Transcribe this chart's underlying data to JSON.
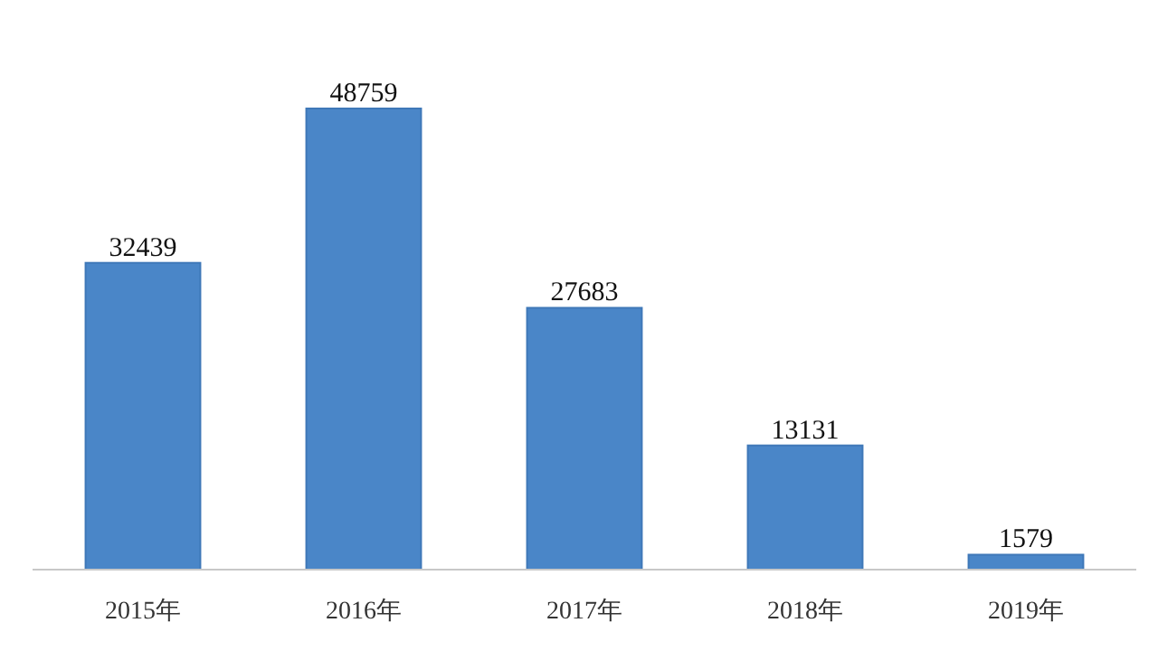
{
  "chart_data": {
    "type": "bar",
    "categories": [
      "2015年",
      "2016年",
      "2017年",
      "2018年",
      "2019年"
    ],
    "values": [
      32439,
      48759,
      27683,
      13131,
      1579
    ],
    "color": "#4a86c8",
    "data_labels": true,
    "grid": false
  }
}
